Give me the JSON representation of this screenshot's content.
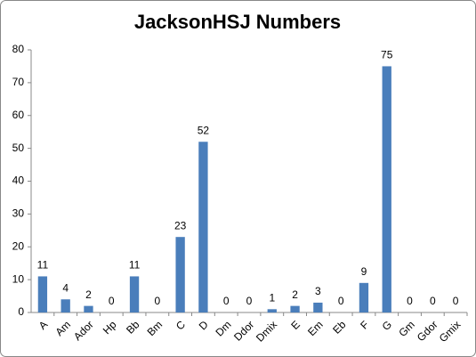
{
  "chart_data": {
    "type": "bar",
    "title": "JacksonHSJ Numbers",
    "categories": [
      "A",
      "Am",
      "Ador",
      "Hp",
      "Bb",
      "Bm",
      "C",
      "D",
      "Dm",
      "Ddor",
      "Dmix",
      "E",
      "Em",
      "Eb",
      "F",
      "G",
      "Gm",
      "Gdor",
      "Gmix"
    ],
    "values": [
      11,
      4,
      2,
      0,
      11,
      0,
      23,
      52,
      0,
      0,
      1,
      2,
      3,
      0,
      9,
      75,
      0,
      0,
      0
    ],
    "color": "#4a7ebb",
    "ylim": [
      0,
      80
    ],
    "yticks": [
      0,
      10,
      20,
      30,
      40,
      50,
      60,
      70,
      80
    ],
    "grid": false
  }
}
